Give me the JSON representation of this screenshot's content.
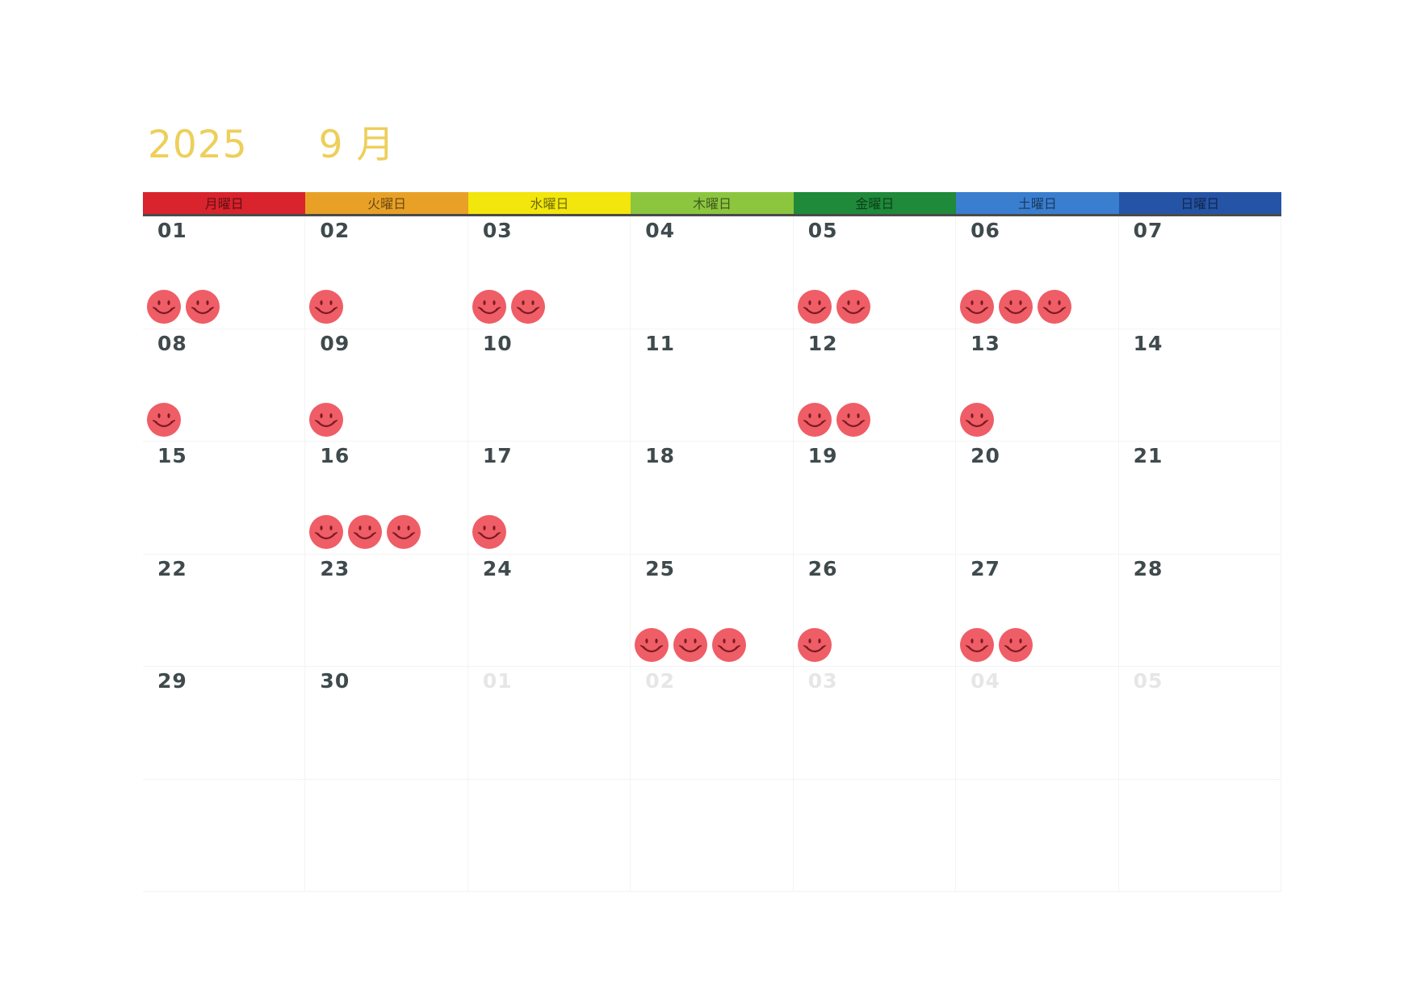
{
  "title": {
    "year": "2025",
    "month": "9 月"
  },
  "weekdays": [
    {
      "label": "月曜日",
      "color": "#d9232d"
    },
    {
      "label": "火曜日",
      "color": "#e8a126"
    },
    {
      "label": "水曜日",
      "color": "#f2e60c"
    },
    {
      "label": "木曜日",
      "color": "#8cc63f"
    },
    {
      "label": "金曜日",
      "color": "#1e8a3a"
    },
    {
      "label": "土曜日",
      "color": "#3a7ecf"
    },
    {
      "label": "日曜日",
      "color": "#2554a6"
    }
  ],
  "sticker_color": "#ef5d66",
  "days": [
    {
      "date": "01",
      "stickers": 2,
      "current": true
    },
    {
      "date": "02",
      "stickers": 1,
      "current": true
    },
    {
      "date": "03",
      "stickers": 2,
      "current": true
    },
    {
      "date": "04",
      "stickers": 0,
      "current": true
    },
    {
      "date": "05",
      "stickers": 2,
      "current": true
    },
    {
      "date": "06",
      "stickers": 3,
      "current": true
    },
    {
      "date": "07",
      "stickers": 0,
      "current": true
    },
    {
      "date": "08",
      "stickers": 1,
      "current": true
    },
    {
      "date": "09",
      "stickers": 1,
      "current": true
    },
    {
      "date": "10",
      "stickers": 0,
      "current": true
    },
    {
      "date": "11",
      "stickers": 0,
      "current": true
    },
    {
      "date": "12",
      "stickers": 2,
      "current": true
    },
    {
      "date": "13",
      "stickers": 1,
      "current": true
    },
    {
      "date": "14",
      "stickers": 0,
      "current": true
    },
    {
      "date": "15",
      "stickers": 0,
      "current": true
    },
    {
      "date": "16",
      "stickers": 3,
      "current": true
    },
    {
      "date": "17",
      "stickers": 1,
      "current": true
    },
    {
      "date": "18",
      "stickers": 0,
      "current": true
    },
    {
      "date": "19",
      "stickers": 0,
      "current": true
    },
    {
      "date": "20",
      "stickers": 0,
      "current": true
    },
    {
      "date": "21",
      "stickers": 0,
      "current": true
    },
    {
      "date": "22",
      "stickers": 0,
      "current": true
    },
    {
      "date": "23",
      "stickers": 0,
      "current": true
    },
    {
      "date": "24",
      "stickers": 0,
      "current": true
    },
    {
      "date": "25",
      "stickers": 3,
      "current": true
    },
    {
      "date": "26",
      "stickers": 1,
      "current": true
    },
    {
      "date": "27",
      "stickers": 2,
      "current": true
    },
    {
      "date": "28",
      "stickers": 0,
      "current": true
    },
    {
      "date": "29",
      "stickers": 0,
      "current": true
    },
    {
      "date": "30",
      "stickers": 0,
      "current": true
    },
    {
      "date": "01",
      "stickers": 0,
      "current": false
    },
    {
      "date": "02",
      "stickers": 0,
      "current": false
    },
    {
      "date": "03",
      "stickers": 0,
      "current": false
    },
    {
      "date": "04",
      "stickers": 0,
      "current": false
    },
    {
      "date": "05",
      "stickers": 0,
      "current": false
    },
    {
      "date": "",
      "stickers": 0,
      "current": false
    },
    {
      "date": "",
      "stickers": 0,
      "current": false
    },
    {
      "date": "",
      "stickers": 0,
      "current": false
    },
    {
      "date": "",
      "stickers": 0,
      "current": false
    },
    {
      "date": "",
      "stickers": 0,
      "current": false
    },
    {
      "date": "",
      "stickers": 0,
      "current": false
    },
    {
      "date": "",
      "stickers": 0,
      "current": false
    }
  ]
}
